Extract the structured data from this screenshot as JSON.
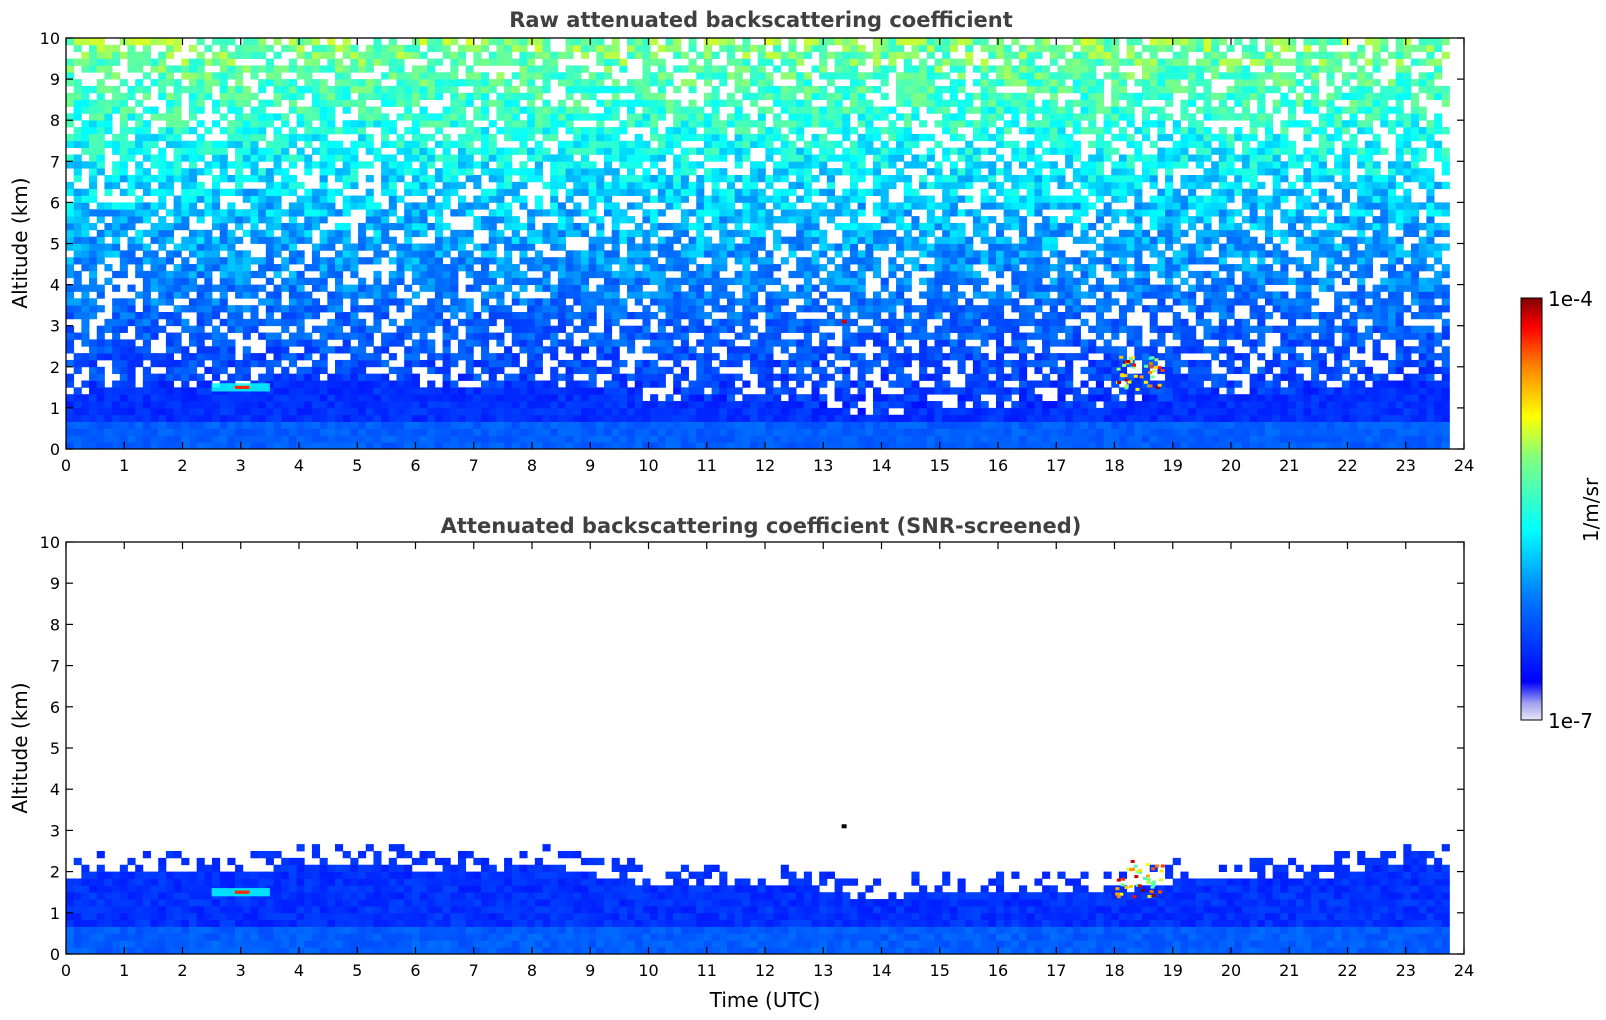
{
  "chart_data": [
    {
      "type": "heatmap",
      "title": "Raw attenuated backscattering coefficient",
      "xlabel": "",
      "ylabel": "Altitude (km)",
      "xlim": [
        0,
        24
      ],
      "ylim": [
        0,
        10
      ],
      "x_ticks": [
        "0",
        "1",
        "2",
        "3",
        "4",
        "5",
        "6",
        "7",
        "8",
        "9",
        "10",
        "11",
        "12",
        "13",
        "14",
        "15",
        "16",
        "17",
        "18",
        "19",
        "20",
        "21",
        "22",
        "23",
        "24"
      ],
      "y_ticks": [
        "0",
        "1",
        "2",
        "3",
        "4",
        "5",
        "6",
        "7",
        "8",
        "9",
        "10"
      ],
      "data_extent_x": [
        0,
        23.75
      ],
      "features": [
        {
          "type": "boundary_layer",
          "x": [
            0,
            23.75
          ],
          "y": [
            0,
            1.5
          ]
        },
        {
          "type": "aerosol_layer",
          "x": [
            2.5,
            3.5
          ],
          "y": [
            1.4,
            1.6
          ]
        },
        {
          "type": "cloud",
          "x": [
            18.0,
            18.8
          ],
          "y": [
            1.4,
            2.3
          ]
        },
        {
          "type": "isolated_return",
          "x": [
            13.35,
            13.35
          ],
          "y": [
            3.1,
            3.1
          ]
        }
      ]
    },
    {
      "type": "heatmap",
      "title": "Attenuated backscattering coefficient (SNR-screened)",
      "xlabel": "Time (UTC)",
      "ylabel": "Altitude (km)",
      "xlim": [
        0,
        24
      ],
      "ylim": [
        0,
        10
      ],
      "x_ticks": [
        "0",
        "1",
        "2",
        "3",
        "4",
        "5",
        "6",
        "7",
        "8",
        "9",
        "10",
        "11",
        "12",
        "13",
        "14",
        "15",
        "16",
        "17",
        "18",
        "19",
        "20",
        "21",
        "22",
        "23",
        "24"
      ],
      "y_ticks": [
        "0",
        "1",
        "2",
        "3",
        "4",
        "5",
        "6",
        "7",
        "8",
        "9",
        "10"
      ],
      "data_extent_x": [
        0,
        23.75
      ],
      "features": [
        {
          "type": "boundary_layer",
          "x": [
            0,
            23.75
          ],
          "y": [
            0,
            2.0
          ]
        },
        {
          "type": "aerosol_layer",
          "x": [
            2.5,
            3.5
          ],
          "y": [
            1.4,
            1.6
          ]
        },
        {
          "type": "cloud",
          "x": [
            18.0,
            18.8
          ],
          "y": [
            1.4,
            2.3
          ]
        },
        {
          "type": "isolated_return",
          "x": [
            13.35,
            13.35
          ],
          "y": [
            3.1,
            3.1
          ]
        }
      ]
    }
  ],
  "colorbar": {
    "label": "1/m/sr",
    "max_label": "1e-4",
    "min_label": "1e-7",
    "scale": "log",
    "colormap": "jet",
    "colors": [
      "#e6e6f5",
      "#0000ff",
      "#00ffff",
      "#ffff00",
      "#ff0000",
      "#800000"
    ]
  }
}
